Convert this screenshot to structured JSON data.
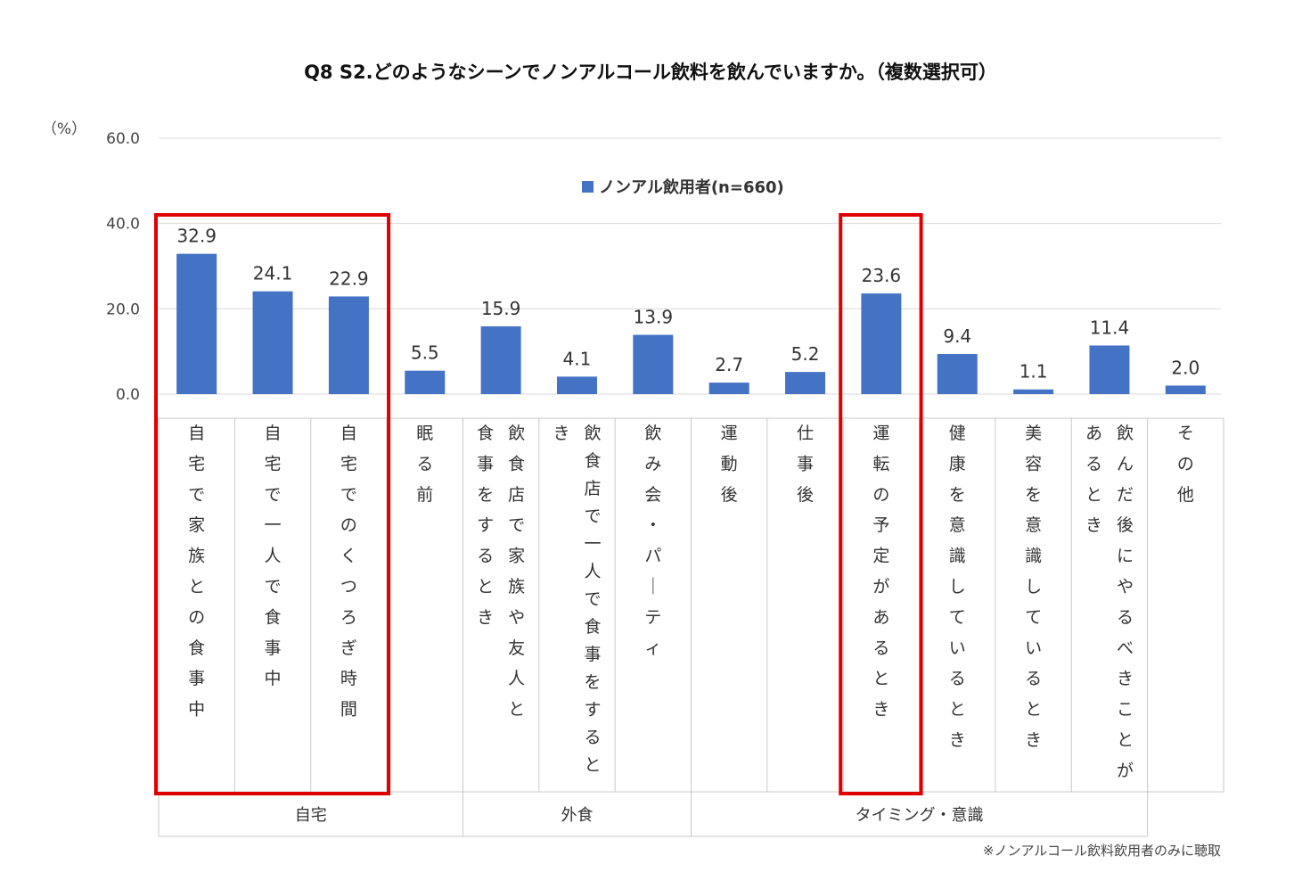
{
  "chart_data": {
    "type": "bar",
    "title": "Q8 S2.どのようなシーンでノンアルコール飲料を飲んでいますか。（複数選択可）",
    "ylabel": "（%）",
    "ylim": [
      0,
      60
    ],
    "yticks": [
      "60.0",
      "40.0",
      "20.0",
      "0.0"
    ],
    "grid": true,
    "legend_position": "top-center",
    "series": [
      {
        "name": "ノンアル飲用者(n=660)",
        "color": "#4472C4",
        "values": [
          32.9,
          24.1,
          22.9,
          5.5,
          15.9,
          4.1,
          13.9,
          2.7,
          5.2,
          23.6,
          9.4,
          1.1,
          11.4,
          2.0
        ]
      }
    ],
    "value_labels": [
      "32.9",
      "24.1",
      "22.9",
      "5.5",
      "15.9",
      "4.1",
      "13.9",
      "2.7",
      "5.2",
      "23.6",
      "9.4",
      "1.1",
      "11.4",
      "2.0"
    ],
    "categories": [
      "自宅で家族との食事中",
      "自宅で一人で食事中",
      "自宅でのくつろぎ時間",
      "眠る前",
      "飲食店で家族や友人と食事をするとき",
      "飲食店で一人で食事をするとき",
      "飲み会・パーティ",
      "運動後",
      "仕事後",
      "運転の予定があるとき",
      "健康を意識しているとき",
      "美容を意識しているとき",
      "飲んだ後にやるべきことがあるとき",
      "その他"
    ],
    "category_columns": [
      [
        "自宅で家族との食事中"
      ],
      [
        "自宅で一人で食事中"
      ],
      [
        "自宅でのくつろぎ時間"
      ],
      [
        "眠る前"
      ],
      [
        "飲食店で家族や友人と",
        "食事をするとき"
      ],
      [
        "飲食店で一人で食事をすると",
        "き"
      ],
      [
        "飲み会・パーティ"
      ],
      [
        "運動後"
      ],
      [
        "仕事後"
      ],
      [
        "運転の予定があるとき"
      ],
      [
        "健康を意識しているとき"
      ],
      [
        "美容を意識しているとき"
      ],
      [
        "飲んだ後にやるべきことが",
        "あるとき"
      ],
      [
        "その他"
      ]
    ],
    "groups": [
      {
        "label": "自宅",
        "start": 0,
        "end": 3
      },
      {
        "label": "外食",
        "start": 4,
        "end": 6
      },
      {
        "label": "タイミング・意識",
        "start": 7,
        "end": 12
      }
    ],
    "highlight_groups": [
      [
        0,
        2
      ],
      [
        9,
        9
      ]
    ],
    "highlight_color": "#E00000",
    "note": "※ノンアルコール飲料飲用者のみに聴取"
  }
}
